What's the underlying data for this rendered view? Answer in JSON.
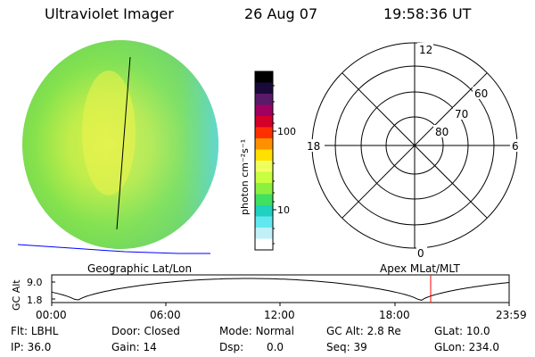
{
  "header": {
    "instrument": "Ultraviolet Imager",
    "date": "26 Aug 07",
    "time": "19:58:36 UT"
  },
  "colorbar": {
    "unit_label": "photon cm⁻²s⁻¹",
    "scale": "log",
    "tick_labels": [
      "100",
      "10"
    ],
    "colors": [
      "#000000",
      "#1a0a3a",
      "#5a1a6a",
      "#a00060",
      "#d4002a",
      "#ff3000",
      "#ff9000",
      "#ffe000",
      "#f0ff60",
      "#c8ff40",
      "#8cf040",
      "#40e060",
      "#20d0c0",
      "#60e8f0",
      "#c0f0f8",
      "#ffffff"
    ]
  },
  "polar_plot": {
    "mlt_labels": {
      "top": "12",
      "left": "18",
      "right": "6",
      "bottom": "0"
    },
    "lat_labels": [
      "60",
      "70",
      "80"
    ],
    "title": "Apex  MLat/MLT"
  },
  "image_panel": {
    "title": "Geographic Lat/Lon"
  },
  "altitude_plot": {
    "ylabel": "GC Alt",
    "ytick_labels": [
      "9.0",
      "1.8"
    ],
    "xtick_labels": [
      "00:00",
      "06:00",
      "12:00",
      "18:00",
      "23:59"
    ]
  },
  "info": {
    "row1": [
      {
        "label": "Flt:",
        "value": "LBHL"
      },
      {
        "label": "Door:",
        "value": "Closed"
      },
      {
        "label": "Mode:",
        "value": "Normal"
      },
      {
        "label": "GC Alt:",
        "value": "2.8 Re"
      },
      {
        "label": "GLat:",
        "value": "10.0"
      }
    ],
    "row2": [
      {
        "label": "IP:",
        "value": "36.0"
      },
      {
        "label": "Gain:",
        "value": "14"
      },
      {
        "label": "Dsp:",
        "value": "0.0"
      },
      {
        "label": "Seq:",
        "value": "39"
      },
      {
        "label": "GLon:",
        "value": "234.0"
      }
    ]
  },
  "colors": {
    "earth_green": "#7ee64a",
    "earth_yellow": "#e4f24a",
    "earth_cyan": "#5ed8e8",
    "horizon_blue": "#0000ff",
    "time_marker": "#ff0000"
  }
}
